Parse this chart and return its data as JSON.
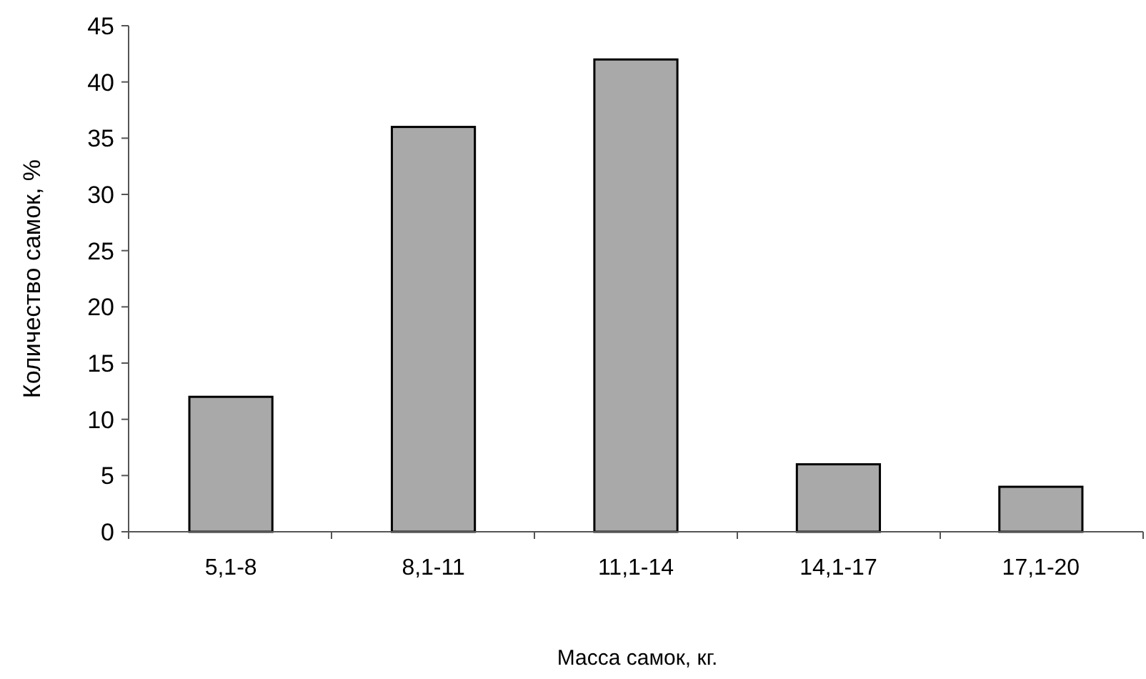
{
  "chart_data": {
    "type": "bar",
    "xlabel": "Масса самок, кг.",
    "ylabel": "Количество самок, %",
    "categories": [
      "5,1-8",
      "8,1-11",
      "11,1-14",
      "14,1-17",
      "17,1-20"
    ],
    "values": [
      12,
      36,
      42,
      6,
      4
    ],
    "color": "#a9a9a9",
    "ylim": [
      0,
      45
    ],
    "yticks": [
      0,
      5,
      10,
      15,
      20,
      25,
      30,
      35,
      40,
      45
    ],
    "grid": false
  }
}
